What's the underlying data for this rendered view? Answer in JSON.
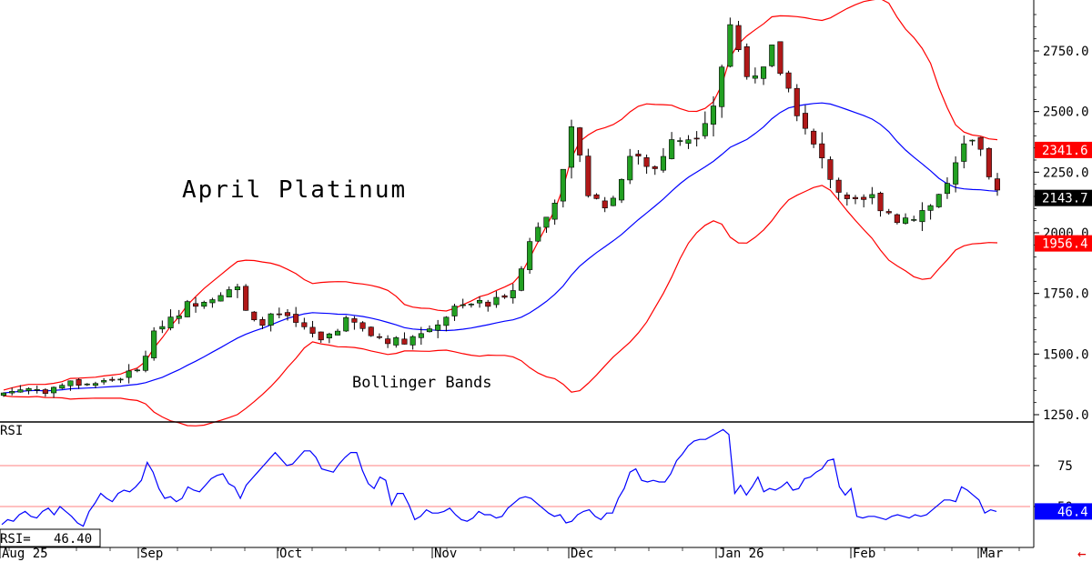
{
  "chart_data": [
    {
      "type": "candlestick",
      "title": "April Platinum",
      "annotation": "Bollinger Bands",
      "ylim": [
        1230,
        2950
      ],
      "y_ticks": [
        1250.0,
        1500.0,
        1750.0,
        2000.0,
        2250.0,
        2500.0,
        2750.0
      ],
      "y_tick_labels": [
        "1250.0",
        "1500.0",
        "1750.0",
        "2000.0",
        "2250.0",
        "2500.0",
        "2750.0"
      ],
      "x_labels": [
        "Aug 25",
        "Sep",
        "Oct",
        "Nov",
        "Dec",
        "Jan 26",
        "Feb",
        "Mar"
      ],
      "price_tags": [
        {
          "label": "2341.6",
          "value": 2341.6,
          "color": "#ff0000"
        },
        {
          "label": "2143.7",
          "value": 2143.7,
          "color": "#000000"
        },
        {
          "label": "1956.4",
          "value": 1956.4,
          "color": "#ff0000"
        }
      ],
      "colors": {
        "up": "#22a022",
        "down": "#b01818",
        "bands": "#ff0000",
        "middle": "#0000ff"
      },
      "grid": false
    },
    {
      "type": "line",
      "title": "",
      "panel_label": "RSI",
      "readout": "RSI=   46.40",
      "ylim": [
        0,
        100
      ],
      "y_ticks": [
        75,
        50
      ],
      "y_tick_labels": [
        "75",
        "50"
      ],
      "reference_lines": [
        75,
        50
      ],
      "last_value_label": "46.4",
      "colors": {
        "line": "#0000ff",
        "ref75": "#ff8080",
        "ref50": "#ff8080"
      },
      "series": [
        {
          "values": [
            39,
            42,
            41,
            45,
            47,
            44,
            43,
            47,
            49,
            45,
            50,
            47,
            44,
            40,
            38,
            47,
            52,
            58,
            55,
            53,
            58,
            60,
            59,
            62,
            66,
            77,
            71,
            61,
            55,
            56,
            53,
            55,
            62,
            60,
            59,
            63,
            67,
            69,
            70,
            64,
            62,
            55,
            63,
            67,
            71,
            75,
            79,
            83,
            79,
            75,
            76,
            80,
            84,
            84,
            80,
            73,
            72,
            71,
            76,
            80,
            83,
            83,
            72,
            64,
            61,
            68,
            66,
            51,
            58,
            58,
            51,
            42,
            44,
            48,
            46,
            46,
            47,
            49,
            45,
            42,
            41,
            43,
            47,
            45,
            45,
            43,
            44,
            49,
            52,
            55,
            56,
            55,
            52,
            49,
            46,
            44,
            45,
            40,
            41,
            45,
            47,
            48,
            44,
            42,
            46,
            46,
            55,
            61,
            71,
            73,
            66,
            65,
            66,
            65,
            65,
            70,
            78,
            82,
            87,
            90,
            91,
            91,
            93,
            95,
            97,
            94,
            58,
            63,
            57,
            62,
            68,
            59,
            61,
            60,
            62,
            65,
            60,
            61,
            67,
            68,
            71,
            73,
            78,
            79,
            62,
            57,
            61,
            44,
            43,
            44,
            44,
            43,
            42,
            44,
            45,
            44,
            43,
            45,
            44,
            45,
            48,
            51,
            54,
            54,
            53,
            62,
            60,
            57,
            54,
            46,
            48,
            47
          ]
        }
      ]
    }
  ]
}
